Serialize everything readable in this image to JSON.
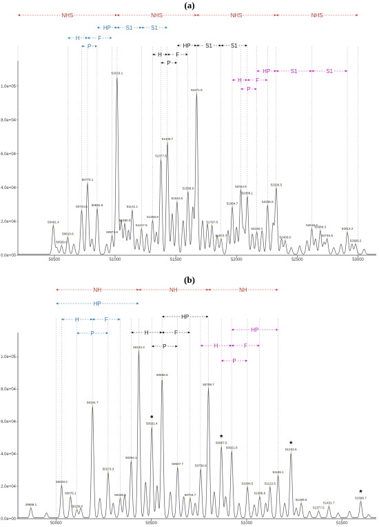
{
  "colors": {
    "red": "#c0392b",
    "blue": "#2e74b5",
    "black": "#111111",
    "magenta": "#c020c0",
    "trace": "#555555",
    "peak_tick": "#b8a000"
  },
  "chart_data": [
    {
      "type": "line",
      "panel_label": "(a)",
      "xlim": [
        50200,
        53150
      ],
      "ylim": [
        0,
        115000
      ],
      "xticks": [
        50500,
        51000,
        51500,
        52000,
        52500,
        53000
      ],
      "xtick_labels": [
        "50500",
        "51000",
        "51500",
        "52000",
        "52500",
        "53000"
      ],
      "yticks": [
        0,
        20000,
        40000,
        60000,
        80000,
        100000
      ],
      "ytick_labels": [
        "0.0e+00",
        "2.0e+04",
        "4.0e+04",
        "6.0e+04",
        "8.0e+04",
        "1.0e+05"
      ],
      "peaks": [
        {
          "x": 50491.4,
          "y": 17000,
          "label": "50491.4"
        },
        {
          "x": 50559.6,
          "y": 5000,
          "label": "50559.6"
        },
        {
          "x": 50610.6,
          "y": 10000,
          "label": "50610.6"
        },
        {
          "x": 50724.6,
          "y": 26000,
          "label": "50724.6"
        },
        {
          "x": 50773.1,
          "y": 42000,
          "label": "50773.1"
        },
        {
          "x": 50852.9,
          "y": 27000,
          "label": "50852.9"
        },
        {
          "x": 50974.8,
          "y": 11000,
          "label": "50974.8"
        },
        {
          "x": 51016.1,
          "y": 105000,
          "label": "51016.1"
        },
        {
          "x": 51080.0,
          "y": 18000,
          "label": "51080.0"
        },
        {
          "x": 51141.1,
          "y": 26000,
          "label": "51141.1"
        },
        {
          "x": 51217.5,
          "y": 15000,
          "label": "51217.5"
        },
        {
          "x": 51308.8,
          "y": 20000,
          "label": "51308.8"
        },
        {
          "x": 51377.5,
          "y": 56000,
          "label": "51377.5"
        },
        {
          "x": 51430.7,
          "y": 66000,
          "label": "51430.7"
        },
        {
          "x": 51510.0,
          "y": 31000,
          "label": "51510.0"
        },
        {
          "x": 51599.9,
          "y": 37000,
          "label": "51599.9"
        },
        {
          "x": 51671.6,
          "y": 95000,
          "label": "51671.6"
        },
        {
          "x": 51797.8,
          "y": 17000,
          "label": "51797.8"
        },
        {
          "x": 51872.7,
          "y": 9000,
          "label": "51872.7"
        },
        {
          "x": 51964.7,
          "y": 28000,
          "label": "51964.7"
        },
        {
          "x": 52034.9,
          "y": 38000,
          "label": "52034.9"
        },
        {
          "x": 52088.1,
          "y": 34000,
          "label": "52088.1"
        },
        {
          "x": 52166.4,
          "y": 13000,
          "label": "52166.4"
        },
        {
          "x": 52255.6,
          "y": 29000,
          "label": "52255.6"
        },
        {
          "x": 52326.5,
          "y": 39000,
          "label": "52326.5"
        },
        {
          "x": 52400.0,
          "y": 8000,
          "label": "52400.0"
        },
        {
          "x": 52619.4,
          "y": 15000,
          "label": "52619.4"
        },
        {
          "x": 52689.3,
          "y": 14000,
          "label": "52689.3"
        },
        {
          "x": 52745.5,
          "y": 9000,
          "label": "52745.5"
        },
        {
          "x": 52912.2,
          "y": 13000,
          "label": "52912.2"
        },
        {
          "x": 52980.2,
          "y": 6000,
          "label": "52980.2"
        }
      ],
      "minor_peaks": [
        {
          "x": 50520,
          "y": 4000
        },
        {
          "x": 50660,
          "y": 6000
        },
        {
          "x": 50810,
          "y": 9000
        },
        {
          "x": 50930,
          "y": 6000
        },
        {
          "x": 51050,
          "y": 20000
        },
        {
          "x": 51110,
          "y": 14000
        },
        {
          "x": 51180,
          "y": 9000
        },
        {
          "x": 51260,
          "y": 12000
        },
        {
          "x": 51340,
          "y": 13000
        },
        {
          "x": 51470,
          "y": 24000
        },
        {
          "x": 51560,
          "y": 20000
        },
        {
          "x": 51640,
          "y": 28000
        },
        {
          "x": 51720,
          "y": 20000
        },
        {
          "x": 51760,
          "y": 18000
        },
        {
          "x": 51840,
          "y": 11000
        },
        {
          "x": 51930,
          "y": 14000
        },
        {
          "x": 52000,
          "y": 16000
        },
        {
          "x": 52060,
          "y": 14000
        },
        {
          "x": 52130,
          "y": 12000
        },
        {
          "x": 52210,
          "y": 14000
        },
        {
          "x": 52300,
          "y": 18000
        },
        {
          "x": 52370,
          "y": 9000
        },
        {
          "x": 52450,
          "y": 4000
        },
        {
          "x": 52520,
          "y": 5000
        },
        {
          "x": 52580,
          "y": 8000
        },
        {
          "x": 52650,
          "y": 9000
        },
        {
          "x": 52720,
          "y": 7000
        },
        {
          "x": 52800,
          "y": 4000
        },
        {
          "x": 52860,
          "y": 6000
        },
        {
          "x": 52950,
          "y": 6000
        },
        {
          "x": 53050,
          "y": 3000
        }
      ],
      "annotation_rows": [
        {
          "color": "red",
          "segments": [
            {
              "x1": 50200,
              "x2": 51016,
              "label": "NHS"
            },
            {
              "x1": 51016,
              "x2": 51671,
              "label": "NHS"
            },
            {
              "x1": 51671,
              "x2": 52326,
              "label": "NHS"
            },
            {
              "x1": 52326,
              "x2": 53000,
              "label": "NHS"
            }
          ]
        },
        {
          "color": "blue",
          "segments": [
            {
              "x1": 50852,
              "x2": 51016,
              "label": "HP"
            },
            {
              "x1": 51016,
              "x2": 51217,
              "label": "S1"
            },
            {
              "x1": 51217,
              "x2": 51430,
              "label": "S1"
            }
          ]
        },
        {
          "color": "blue",
          "segments": [
            {
              "x1": 50610,
              "x2": 50773,
              "label": "H"
            },
            {
              "x1": 50773,
              "x2": 50974,
              "label": "F"
            }
          ]
        },
        {
          "color": "blue",
          "segments": [
            {
              "x1": 50724,
              "x2": 50852,
              "label": "P"
            }
          ]
        },
        {
          "color": "black",
          "segments": [
            {
              "x1": 51510,
              "x2": 51671,
              "label": "HP"
            },
            {
              "x1": 51671,
              "x2": 51872,
              "label": "S1"
            },
            {
              "x1": 51872,
              "x2": 52088,
              "label": "S1"
            }
          ]
        },
        {
          "color": "black",
          "segments": [
            {
              "x1": 51308,
              "x2": 51430,
              "label": "H"
            },
            {
              "x1": 51430,
              "x2": 51599,
              "label": "F"
            }
          ]
        },
        {
          "color": "black",
          "segments": [
            {
              "x1": 51377,
              "x2": 51510,
              "label": "P"
            }
          ]
        },
        {
          "color": "magenta",
          "segments": [
            {
              "x1": 52166,
              "x2": 52326,
              "label": "HP"
            },
            {
              "x1": 52326,
              "x2": 52619,
              "label": "S1"
            },
            {
              "x1": 52619,
              "x2": 52912,
              "label": "S1"
            }
          ]
        },
        {
          "color": "magenta",
          "segments": [
            {
              "x1": 51964,
              "x2": 52088,
              "label": "H"
            },
            {
              "x1": 52088,
              "x2": 52255,
              "label": "F"
            }
          ]
        },
        {
          "color": "magenta",
          "segments": [
            {
              "x1": 52034,
              "x2": 52166,
              "label": "P"
            }
          ]
        }
      ],
      "stars": []
    },
    {
      "type": "line",
      "panel_label": "(b)",
      "xlim": [
        49800,
        51680
      ],
      "ylim": [
        0,
        115000
      ],
      "xticks": [
        50000,
        50500,
        51000,
        51500
      ],
      "xtick_labels": [
        "50000",
        "50500",
        "51000",
        "51500"
      ],
      "yticks": [
        0,
        20000,
        40000,
        60000,
        80000,
        100000
      ],
      "ytick_labels": [
        "0.0e+00",
        "2.0e+04",
        "4.0e+04",
        "6.0e+04",
        "8.0e+04",
        "1.0e+05"
      ],
      "peaks": [
        {
          "x": 49868.1,
          "y": 6000,
          "label": "49868.1"
        },
        {
          "x": 50029.4,
          "y": 20000,
          "label": "50029.4"
        },
        {
          "x": 50076.1,
          "y": 13000,
          "label": "50076.1"
        },
        {
          "x": 50109.6,
          "y": 5000,
          "label": "50109.6"
        },
        {
          "x": 50191.7,
          "y": 69000,
          "label": "50191.7"
        },
        {
          "x": 50273.3,
          "y": 28000,
          "label": "50273.3"
        },
        {
          "x": 50336.8,
          "y": 12000,
          "label": "50336.8"
        },
        {
          "x": 50394.1,
          "y": 35000,
          "label": "50394.1"
        },
        {
          "x": 50434.4,
          "y": 103000,
          "label": "50434.4"
        },
        {
          "x": 50502.4,
          "y": 56000,
          "label": "50502.4"
        },
        {
          "x": 50556.5,
          "y": 86000,
          "label": "50556.5"
        },
        {
          "x": 50637.7,
          "y": 31000,
          "label": "50637.7"
        },
        {
          "x": 50703.7,
          "y": 12000,
          "label": "50703.7"
        },
        {
          "x": 50758.9,
          "y": 30000,
          "label": "50758.9"
        },
        {
          "x": 50799.7,
          "y": 80000,
          "label": "50799.7"
        },
        {
          "x": 50867.5,
          "y": 44000,
          "label": "50867.5"
        },
        {
          "x": 50921.8,
          "y": 41000,
          "label": "50921.8"
        },
        {
          "x": 51004.5,
          "y": 19000,
          "label": "51004.5"
        },
        {
          "x": 51068.6,
          "y": 13000,
          "label": "51068.6"
        },
        {
          "x": 51122.6,
          "y": 19000,
          "label": "51122.6"
        },
        {
          "x": 51165.1,
          "y": 26000,
          "label": "51165.1"
        },
        {
          "x": 51232.6,
          "y": 40000,
          "label": "51232.6"
        },
        {
          "x": 51286.6,
          "y": 9000,
          "label": "51286.6"
        },
        {
          "x": 51377.5,
          "y": 4000,
          "label": "51377.5"
        },
        {
          "x": 51431.7,
          "y": 7000,
          "label": "51431.7"
        },
        {
          "x": 51598.7,
          "y": 10000,
          "label": "51598.7"
        }
      ],
      "minor_peaks": [
        {
          "x": 49950,
          "y": 3000
        },
        {
          "x": 50130,
          "y": 6000
        },
        {
          "x": 50230,
          "y": 12000
        },
        {
          "x": 50300,
          "y": 9000
        },
        {
          "x": 50360,
          "y": 14000
        },
        {
          "x": 50470,
          "y": 22000
        },
        {
          "x": 50530,
          "y": 20000
        },
        {
          "x": 50600,
          "y": 16000
        },
        {
          "x": 50670,
          "y": 13000
        },
        {
          "x": 50730,
          "y": 9000
        },
        {
          "x": 50830,
          "y": 16000
        },
        {
          "x": 50890,
          "y": 13000
        },
        {
          "x": 50960,
          "y": 9000
        },
        {
          "x": 51040,
          "y": 8000
        },
        {
          "x": 51100,
          "y": 9000
        },
        {
          "x": 51200,
          "y": 9000
        },
        {
          "x": 51260,
          "y": 6000
        },
        {
          "x": 51330,
          "y": 4000
        },
        {
          "x": 51480,
          "y": 3000
        },
        {
          "x": 51540,
          "y": 4000
        },
        {
          "x": 51640,
          "y": 2000
        }
      ],
      "annotation_rows": [
        {
          "color": "red",
          "segments": [
            {
              "x1": 50000,
              "x2": 50434,
              "label": "NH"
            },
            {
              "x1": 50434,
              "x2": 50799,
              "label": "NH"
            },
            {
              "x1": 50799,
              "x2": 51165,
              "label": "NH"
            }
          ]
        },
        {
          "color": "blue",
          "segments": [
            {
              "x1": 50000,
              "x2": 50434,
              "label": "HP"
            }
          ]
        },
        {
          "color": "blue",
          "segments": [
            {
              "x1": 50029,
              "x2": 50191,
              "label": "H"
            },
            {
              "x1": 50191,
              "x2": 50336,
              "label": "F"
            }
          ]
        },
        {
          "color": "blue",
          "segments": [
            {
              "x1": 50109,
              "x2": 50273,
              "label": "P"
            }
          ]
        },
        {
          "color": "black",
          "segments": [
            {
              "x1": 50556,
              "x2": 50799,
              "label": "HP"
            }
          ]
        },
        {
          "color": "black",
          "segments": [
            {
              "x1": 50394,
              "x2": 50556,
              "label": "H"
            },
            {
              "x1": 50556,
              "x2": 50703,
              "label": "F"
            }
          ]
        },
        {
          "color": "black",
          "segments": [
            {
              "x1": 50502,
              "x2": 50637,
              "label": "P"
            }
          ]
        },
        {
          "color": "magenta",
          "segments": [
            {
              "x1": 50921,
              "x2": 51165,
              "label": "HP"
            }
          ]
        },
        {
          "color": "magenta",
          "segments": [
            {
              "x1": 50758,
              "x2": 50921,
              "label": "H"
            },
            {
              "x1": 50921,
              "x2": 51068,
              "label": "F"
            }
          ]
        },
        {
          "color": "magenta",
          "segments": [
            {
              "x1": 50867,
              "x2": 51004,
              "label": "P"
            }
          ]
        }
      ],
      "stars": [
        {
          "x": 50502.4,
          "y": 56000,
          "label": "*"
        },
        {
          "x": 50867.5,
          "y": 44000,
          "label": "*"
        },
        {
          "x": 51232.6,
          "y": 40000,
          "label": "*"
        },
        {
          "x": 51598.7,
          "y": 10000,
          "label": "*"
        }
      ]
    }
  ]
}
